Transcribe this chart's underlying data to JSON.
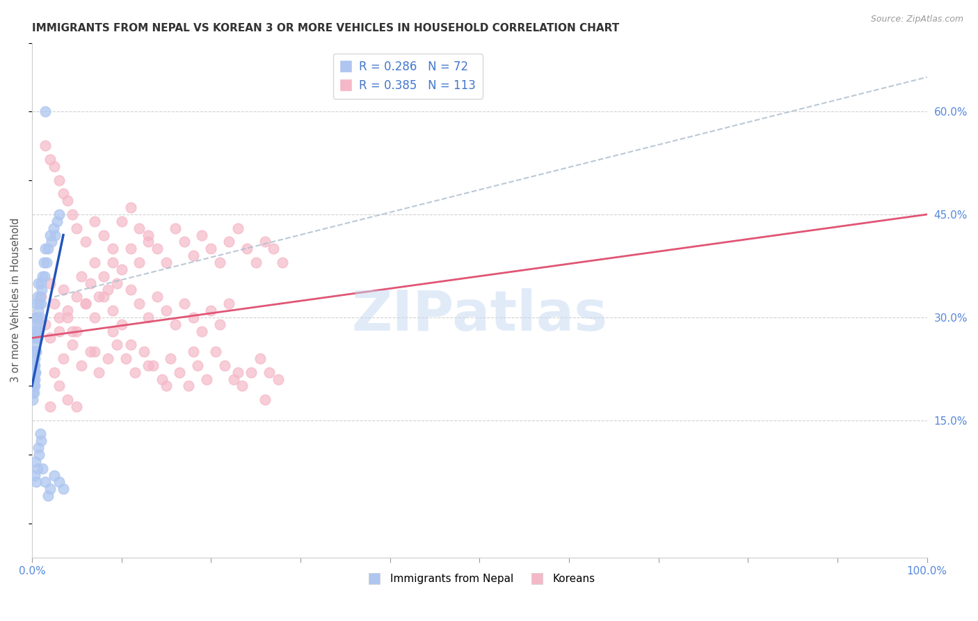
{
  "title": "IMMIGRANTS FROM NEPAL VS KOREAN 3 OR MORE VEHICLES IN HOUSEHOLD CORRELATION CHART",
  "source": "Source: ZipAtlas.com",
  "ylabel": "3 or more Vehicles in Household",
  "watermark": "ZIPatlas",
  "right_yticks": [
    0.15,
    0.3,
    0.45,
    0.6
  ],
  "right_yticklabels": [
    "15.0%",
    "30.0%",
    "45.0%",
    "60.0%"
  ],
  "xlim": [
    0.0,
    1.0
  ],
  "ylim": [
    -0.05,
    0.7
  ],
  "nepal_R": 0.286,
  "nepal_N": 72,
  "korean_R": 0.385,
  "korean_N": 113,
  "nepal_color": "#aec6f0",
  "korean_color": "#f5b8c8",
  "nepal_trend_color": "#2255bb",
  "korean_trend_color": "#e05575",
  "background_color": "#ffffff",
  "grid_color": "#cccccc",
  "title_color": "#333333",
  "right_axis_color": "#5588dd",
  "legend_R_color": "#4477cc",
  "nepal_x": [
    0.001,
    0.001,
    0.001,
    0.001,
    0.001,
    0.001,
    0.001,
    0.002,
    0.002,
    0.002,
    0.002,
    0.002,
    0.002,
    0.002,
    0.002,
    0.003,
    0.003,
    0.003,
    0.003,
    0.003,
    0.003,
    0.003,
    0.004,
    0.004,
    0.004,
    0.004,
    0.004,
    0.005,
    0.005,
    0.005,
    0.005,
    0.006,
    0.006,
    0.006,
    0.007,
    0.007,
    0.007,
    0.008,
    0.008,
    0.009,
    0.009,
    0.01,
    0.01,
    0.011,
    0.012,
    0.013,
    0.014,
    0.015,
    0.016,
    0.018,
    0.02,
    0.022,
    0.024,
    0.026,
    0.028,
    0.03,
    0.003,
    0.004,
    0.005,
    0.006,
    0.007,
    0.008,
    0.009,
    0.01,
    0.012,
    0.015,
    0.018,
    0.02,
    0.025,
    0.03,
    0.035,
    0.015
  ],
  "nepal_y": [
    0.22,
    0.2,
    0.25,
    0.19,
    0.23,
    0.21,
    0.18,
    0.24,
    0.22,
    0.2,
    0.26,
    0.19,
    0.23,
    0.21,
    0.25,
    0.22,
    0.27,
    0.2,
    0.24,
    0.23,
    0.21,
    0.25,
    0.28,
    0.25,
    0.22,
    0.3,
    0.27,
    0.32,
    0.29,
    0.25,
    0.28,
    0.3,
    0.27,
    0.33,
    0.31,
    0.28,
    0.35,
    0.29,
    0.32,
    0.33,
    0.3,
    0.35,
    0.32,
    0.34,
    0.36,
    0.38,
    0.36,
    0.4,
    0.38,
    0.4,
    0.42,
    0.41,
    0.43,
    0.42,
    0.44,
    0.45,
    0.07,
    0.09,
    0.06,
    0.08,
    0.11,
    0.1,
    0.13,
    0.12,
    0.08,
    0.06,
    0.04,
    0.05,
    0.07,
    0.06,
    0.05,
    0.6
  ],
  "korean_x": [
    0.005,
    0.01,
    0.015,
    0.02,
    0.025,
    0.03,
    0.035,
    0.04,
    0.045,
    0.05,
    0.055,
    0.06,
    0.065,
    0.07,
    0.075,
    0.08,
    0.085,
    0.09,
    0.095,
    0.1,
    0.11,
    0.12,
    0.13,
    0.14,
    0.15,
    0.16,
    0.17,
    0.18,
    0.19,
    0.2,
    0.21,
    0.22,
    0.23,
    0.24,
    0.25,
    0.26,
    0.27,
    0.28,
    0.015,
    0.02,
    0.025,
    0.03,
    0.035,
    0.04,
    0.045,
    0.05,
    0.06,
    0.07,
    0.08,
    0.09,
    0.1,
    0.11,
    0.12,
    0.13,
    0.02,
    0.03,
    0.04,
    0.05,
    0.06,
    0.07,
    0.08,
    0.09,
    0.1,
    0.11,
    0.12,
    0.13,
    0.14,
    0.15,
    0.16,
    0.17,
    0.18,
    0.19,
    0.2,
    0.21,
    0.22,
    0.025,
    0.035,
    0.045,
    0.055,
    0.065,
    0.075,
    0.085,
    0.095,
    0.105,
    0.115,
    0.125,
    0.135,
    0.145,
    0.155,
    0.165,
    0.175,
    0.185,
    0.195,
    0.205,
    0.215,
    0.225,
    0.235,
    0.245,
    0.255,
    0.265,
    0.275,
    0.26,
    0.23,
    0.18,
    0.15,
    0.13,
    0.11,
    0.09,
    0.07,
    0.05,
    0.04,
    0.03,
    0.02
  ],
  "korean_y": [
    0.3,
    0.33,
    0.29,
    0.35,
    0.32,
    0.3,
    0.34,
    0.31,
    0.28,
    0.33,
    0.36,
    0.32,
    0.35,
    0.38,
    0.33,
    0.36,
    0.34,
    0.38,
    0.35,
    0.37,
    0.4,
    0.38,
    0.42,
    0.4,
    0.38,
    0.43,
    0.41,
    0.39,
    0.42,
    0.4,
    0.38,
    0.41,
    0.43,
    0.4,
    0.38,
    0.41,
    0.4,
    0.38,
    0.55,
    0.53,
    0.52,
    0.5,
    0.48,
    0.47,
    0.45,
    0.43,
    0.41,
    0.44,
    0.42,
    0.4,
    0.44,
    0.46,
    0.43,
    0.41,
    0.27,
    0.28,
    0.3,
    0.28,
    0.32,
    0.3,
    0.33,
    0.31,
    0.29,
    0.34,
    0.32,
    0.3,
    0.33,
    0.31,
    0.29,
    0.32,
    0.3,
    0.28,
    0.31,
    0.29,
    0.32,
    0.22,
    0.24,
    0.26,
    0.23,
    0.25,
    0.22,
    0.24,
    0.26,
    0.24,
    0.22,
    0.25,
    0.23,
    0.21,
    0.24,
    0.22,
    0.2,
    0.23,
    0.21,
    0.25,
    0.23,
    0.21,
    0.2,
    0.22,
    0.24,
    0.22,
    0.21,
    0.18,
    0.22,
    0.25,
    0.2,
    0.23,
    0.26,
    0.28,
    0.25,
    0.17,
    0.18,
    0.2,
    0.17
  ],
  "nepal_trend_x": [
    0.0,
    0.035
  ],
  "nepal_trend_y_start": 0.2,
  "nepal_trend_y_end": 0.42,
  "korean_trend_x": [
    0.0,
    1.0
  ],
  "korean_trend_y_start": 0.27,
  "korean_trend_y_end": 0.45,
  "dashed_line_x": [
    0.025,
    1.0
  ],
  "dashed_line_y": [
    0.33,
    0.65
  ]
}
